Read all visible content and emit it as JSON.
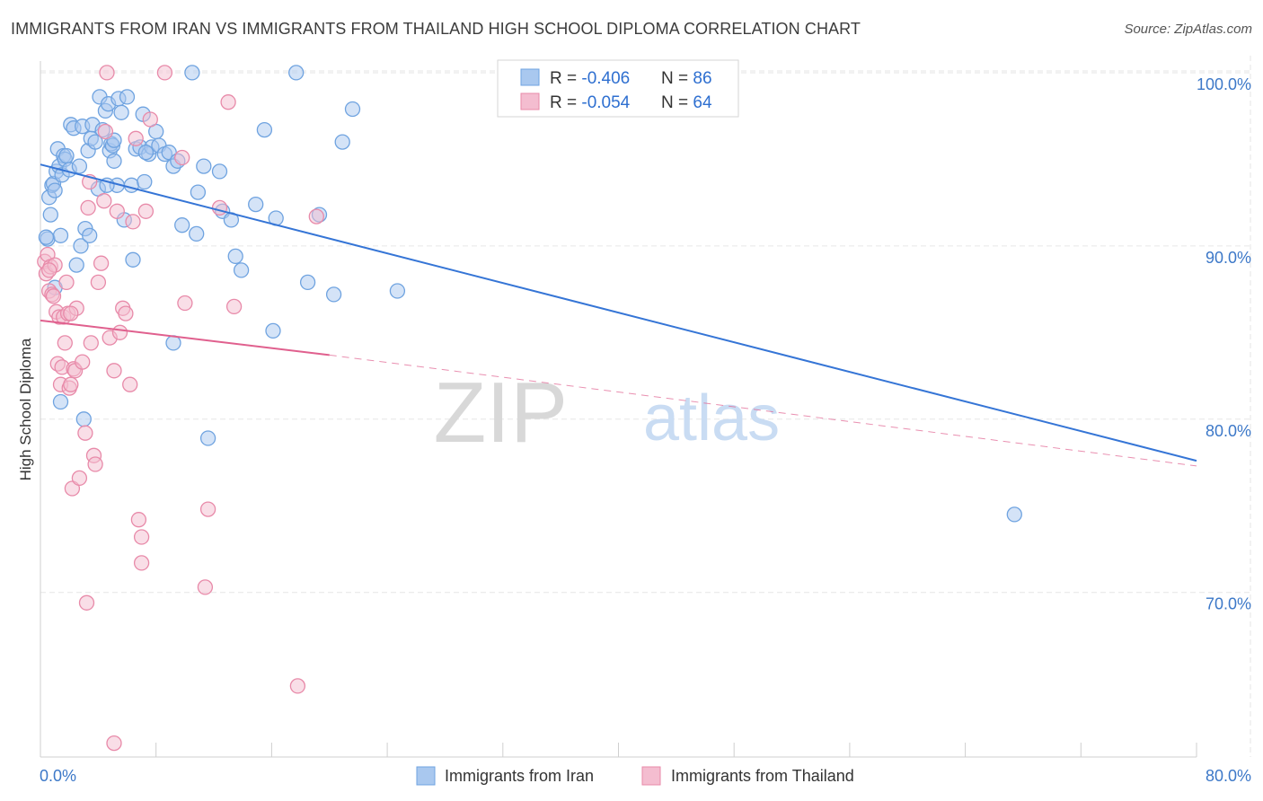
{
  "chart_data": {
    "type": "scatter",
    "title": "IMMIGRANTS FROM IRAN VS IMMIGRANTS FROM THAILAND HIGH SCHOOL DIPLOMA CORRELATION CHART",
    "source": "Source: ZipAtlas.com",
    "xlabel": "",
    "ylabel": "High School Diploma",
    "xlim": [
      0,
      80
    ],
    "ylim": [
      60.5,
      101.5
    ],
    "x_tick_labels": [
      "0.0%",
      "80.0%"
    ],
    "y_ticks": [
      70,
      80,
      90,
      100
    ],
    "y_tick_labels": [
      "70.0%",
      "80.0%",
      "90.0%",
      "100.0%"
    ],
    "grid": true,
    "legend_position": "bottom",
    "watermark": {
      "part1": "ZIP",
      "part2": "atlas"
    },
    "stats_box": {
      "position": "top-center",
      "rows": [
        {
          "r_label": "R = ",
          "r_value": "-0.406",
          "n_label": "N = ",
          "n_value": "86"
        },
        {
          "r_label": "R = ",
          "r_value": "-0.054",
          "n_label": "N = ",
          "n_value": "64"
        }
      ]
    },
    "series": [
      {
        "name": "Immigrants from Iran",
        "color": "#6fa3e0",
        "fill": "#a9c8ef",
        "line_color": "#3575d6",
        "trend": {
          "x": [
            0,
            80
          ],
          "y": [
            94.7,
            77.6
          ]
        },
        "points": [
          [
            0.5,
            90.4
          ],
          [
            0.6,
            92.8
          ],
          [
            0.7,
            91.8
          ],
          [
            0.8,
            93.5
          ],
          [
            0.9,
            93.6
          ],
          [
            1.0,
            93.2
          ],
          [
            1.1,
            94.3
          ],
          [
            1.2,
            95.6
          ],
          [
            1.3,
            94.6
          ],
          [
            1.4,
            90.6
          ],
          [
            1.5,
            94.1
          ],
          [
            1.6,
            95.2
          ],
          [
            1.7,
            95.0
          ],
          [
            1.8,
            95.2
          ],
          [
            2.0,
            94.4
          ],
          [
            2.1,
            97.0
          ],
          [
            2.3,
            96.8
          ],
          [
            2.5,
            88.9
          ],
          [
            2.7,
            94.6
          ],
          [
            2.8,
            90.0
          ],
          [
            2.9,
            96.9
          ],
          [
            3.1,
            91.0
          ],
          [
            3.3,
            95.5
          ],
          [
            3.4,
            90.6
          ],
          [
            3.5,
            96.2
          ],
          [
            3.6,
            97.0
          ],
          [
            3.8,
            96.0
          ],
          [
            4.0,
            93.3
          ],
          [
            4.1,
            98.6
          ],
          [
            4.3,
            96.7
          ],
          [
            4.5,
            97.8
          ],
          [
            4.7,
            98.2
          ],
          [
            4.8,
            95.5
          ],
          [
            4.9,
            95.9
          ],
          [
            5.0,
            95.8
          ],
          [
            5.1,
            94.9
          ],
          [
            5.3,
            93.5
          ],
          [
            5.4,
            98.5
          ],
          [
            5.6,
            97.7
          ],
          [
            5.8,
            91.5
          ],
          [
            6.0,
            98.6
          ],
          [
            6.3,
            93.5
          ],
          [
            6.4,
            89.2
          ],
          [
            6.6,
            95.6
          ],
          [
            6.9,
            95.7
          ],
          [
            7.1,
            97.6
          ],
          [
            7.2,
            93.7
          ],
          [
            7.5,
            95.3
          ],
          [
            7.7,
            95.7
          ],
          [
            8.0,
            96.6
          ],
          [
            8.2,
            95.8
          ],
          [
            8.6,
            95.3
          ],
          [
            8.9,
            95.4
          ],
          [
            9.2,
            94.6
          ],
          [
            9.5,
            94.9
          ],
          [
            9.8,
            91.2
          ],
          [
            10.5,
            100.0
          ],
          [
            10.9,
            93.1
          ],
          [
            11.3,
            94.6
          ],
          [
            12.6,
            92.0
          ],
          [
            13.2,
            91.5
          ],
          [
            13.5,
            89.4
          ],
          [
            13.9,
            88.6
          ],
          [
            14.9,
            92.4
          ],
          [
            15.5,
            96.7
          ],
          [
            16.1,
            85.1
          ],
          [
            16.3,
            91.6
          ],
          [
            17.7,
            100.0
          ],
          [
            18.5,
            87.9
          ],
          [
            19.3,
            91.8
          ],
          [
            20.3,
            87.2
          ],
          [
            20.9,
            96.0
          ],
          [
            21.6,
            97.9
          ],
          [
            24.7,
            87.4
          ],
          [
            1.0,
            87.6
          ],
          [
            1.4,
            81.0
          ],
          [
            3.0,
            80.0
          ],
          [
            9.2,
            84.4
          ],
          [
            11.6,
            78.9
          ],
          [
            67.4,
            74.5
          ],
          [
            7.3,
            95.4
          ],
          [
            12.4,
            94.3
          ],
          [
            5.1,
            96.1
          ],
          [
            10.8,
            90.7
          ],
          [
            4.6,
            93.5
          ],
          [
            0.4,
            90.5
          ]
        ]
      },
      {
        "name": "Immigrants from Thailand",
        "color": "#e88aa9",
        "fill": "#f4bdd0",
        "line_color": "#e0608e",
        "trend": {
          "x": [
            0,
            20
          ],
          "y": [
            85.7,
            83.7
          ]
        },
        "trend_dashed": {
          "x": [
            20,
            80
          ],
          "y": [
            83.7,
            77.3
          ]
        },
        "points": [
          [
            0.3,
            89.1
          ],
          [
            0.4,
            88.4
          ],
          [
            0.5,
            89.5
          ],
          [
            0.6,
            87.4
          ],
          [
            0.7,
            88.8
          ],
          [
            0.8,
            87.2
          ],
          [
            0.9,
            87.1
          ],
          [
            1.0,
            88.9
          ],
          [
            1.1,
            86.2
          ],
          [
            1.2,
            83.2
          ],
          [
            1.3,
            85.9
          ],
          [
            1.4,
            82.0
          ],
          [
            1.5,
            83.0
          ],
          [
            1.6,
            85.9
          ],
          [
            1.7,
            84.4
          ],
          [
            1.8,
            87.9
          ],
          [
            1.9,
            86.1
          ],
          [
            2.0,
            81.8
          ],
          [
            2.1,
            82.0
          ],
          [
            2.2,
            76.0
          ],
          [
            2.3,
            82.9
          ],
          [
            2.4,
            82.8
          ],
          [
            2.5,
            86.4
          ],
          [
            2.7,
            76.6
          ],
          [
            2.9,
            83.3
          ],
          [
            3.1,
            79.2
          ],
          [
            3.3,
            92.2
          ],
          [
            3.4,
            93.7
          ],
          [
            3.5,
            84.4
          ],
          [
            3.7,
            77.9
          ],
          [
            3.8,
            77.4
          ],
          [
            4.0,
            87.9
          ],
          [
            4.2,
            89.0
          ],
          [
            4.4,
            92.6
          ],
          [
            4.5,
            96.6
          ],
          [
            4.8,
            84.7
          ],
          [
            5.1,
            82.8
          ],
          [
            5.3,
            92.0
          ],
          [
            5.5,
            85.0
          ],
          [
            5.7,
            86.4
          ],
          [
            5.9,
            86.1
          ],
          [
            6.2,
            82.0
          ],
          [
            6.4,
            91.4
          ],
          [
            6.6,
            96.2
          ],
          [
            6.8,
            74.2
          ],
          [
            7.0,
            73.2
          ],
          [
            7.0,
            71.7
          ],
          [
            7.3,
            92.0
          ],
          [
            7.6,
            97.3
          ],
          [
            8.6,
            100.0
          ],
          [
            9.8,
            95.1
          ],
          [
            10.0,
            86.7
          ],
          [
            11.4,
            70.3
          ],
          [
            11.6,
            74.8
          ],
          [
            12.4,
            92.2
          ],
          [
            13.0,
            98.3
          ],
          [
            13.4,
            86.5
          ],
          [
            17.8,
            64.6
          ],
          [
            19.1,
            91.7
          ],
          [
            5.1,
            61.3
          ],
          [
            3.2,
            69.4
          ],
          [
            4.6,
            100.0
          ],
          [
            0.6,
            88.6
          ],
          [
            2.1,
            86.1
          ]
        ]
      }
    ]
  }
}
